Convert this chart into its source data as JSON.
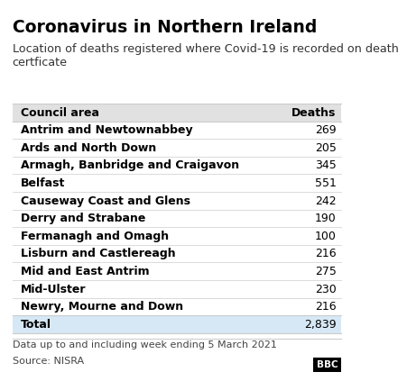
{
  "title": "Coronavirus in Northern Ireland",
  "subtitle": "Location of deaths registered where Covid-19 is recorded on death\ncertficate",
  "col_headers": [
    "Council area",
    "Deaths"
  ],
  "rows": [
    [
      "Antrim and Newtownabbey",
      "269"
    ],
    [
      "Ards and North Down",
      "205"
    ],
    [
      "Armagh, Banbridge and Craigavon",
      "345"
    ],
    [
      "Belfast",
      "551"
    ],
    [
      "Causeway Coast and Glens",
      "242"
    ],
    [
      "Derry and Strabane",
      "190"
    ],
    [
      "Fermanagh and Omagh",
      "100"
    ],
    [
      "Lisburn and Castlereagh",
      "216"
    ],
    [
      "Mid and East Antrim",
      "275"
    ],
    [
      "Mid-Ulster",
      "230"
    ],
    [
      "Newry, Mourne and Down",
      "216"
    ]
  ],
  "total_row": [
    "Total",
    "2,839"
  ],
  "footer1": "Data up to and including week ending 5 March 2021",
  "footer2": "Source: NISRA",
  "bbc_logo": "BBC",
  "header_bg": "#e1e1e1",
  "total_bg": "#d6e8f5",
  "title_color": "#000000",
  "subtitle_color": "#333333",
  "text_color": "#000000",
  "footer_color": "#444444",
  "border_color": "#cccccc",
  "title_fontsize": 13.5,
  "subtitle_fontsize": 9.2,
  "header_fontsize": 9,
  "row_fontsize": 9,
  "footer_fontsize": 8
}
